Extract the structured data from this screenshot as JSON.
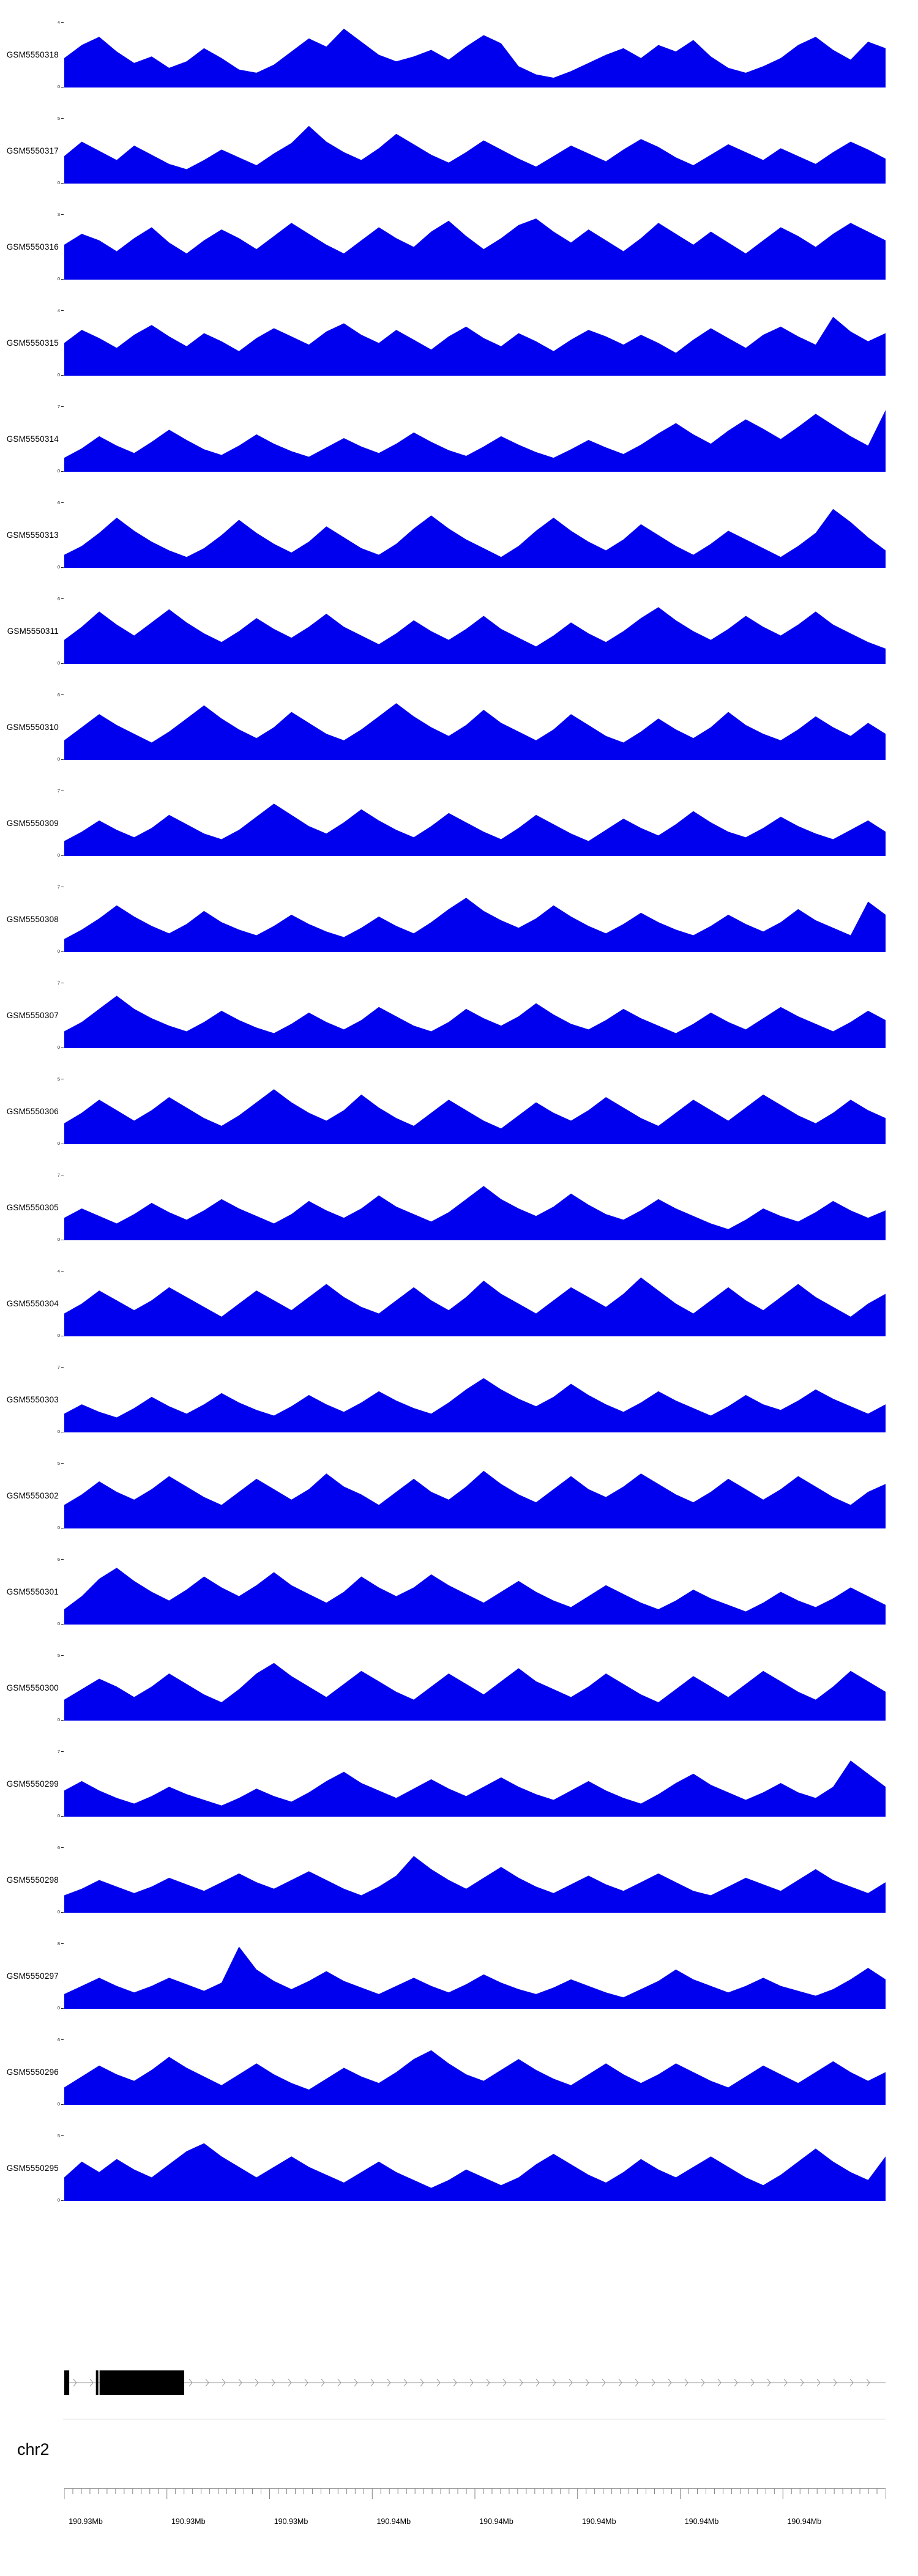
{
  "chart_data": {
    "type": "area",
    "title": "",
    "description": "Genome browser coverage tracks (read-depth signal) for 23 GEO samples over a region of chromosome 2",
    "chromosome_label": "chr2",
    "y_min_label": "0",
    "fill_color": "#0000EE",
    "x_tick_labels": [
      "190.93Mb",
      "190.93Mb",
      "190.93Mb",
      "190.94Mb",
      "190.94Mb",
      "190.94Mb",
      "190.94Mb",
      "190.94Mb"
    ],
    "tracks": [
      {
        "label": "GSM5550318",
        "ymax": 4,
        "values": [
          1.8,
          2.6,
          3.1,
          2.2,
          1.5,
          1.9,
          1.2,
          1.6,
          2.4,
          1.8,
          1.1,
          0.9,
          1.4,
          2.2,
          3.0,
          2.5,
          3.6,
          2.8,
          2.0,
          1.6,
          1.9,
          2.3,
          1.7,
          2.5,
          3.2,
          2.7,
          1.3,
          0.8,
          0.6,
          1.0,
          1.5,
          2.0,
          2.4,
          1.8,
          2.6,
          2.2,
          2.9,
          1.9,
          1.2,
          0.9,
          1.3,
          1.8,
          2.6,
          3.1,
          2.3,
          1.7,
          2.8,
          2.4
        ]
      },
      {
        "label": "GSM5550317",
        "ymax": 5,
        "values": [
          2.1,
          3.2,
          2.5,
          1.8,
          2.9,
          2.2,
          1.5,
          1.1,
          1.8,
          2.6,
          2.0,
          1.4,
          2.3,
          3.1,
          4.4,
          3.2,
          2.4,
          1.8,
          2.7,
          3.8,
          3.0,
          2.2,
          1.6,
          2.4,
          3.3,
          2.6,
          1.9,
          1.3,
          2.1,
          2.9,
          2.3,
          1.7,
          2.6,
          3.4,
          2.8,
          2.0,
          1.4,
          2.2,
          3.0,
          2.4,
          1.8,
          2.7,
          2.1,
          1.5,
          2.4,
          3.2,
          2.6,
          1.9
        ]
      },
      {
        "label": "GSM5550316",
        "ymax": 3,
        "values": [
          1.6,
          2.1,
          1.8,
          1.3,
          1.9,
          2.4,
          1.7,
          1.2,
          1.8,
          2.3,
          1.9,
          1.4,
          2.0,
          2.6,
          2.1,
          1.6,
          1.2,
          1.8,
          2.4,
          1.9,
          1.5,
          2.2,
          2.7,
          2.0,
          1.4,
          1.9,
          2.5,
          2.8,
          2.2,
          1.7,
          2.3,
          1.8,
          1.3,
          1.9,
          2.6,
          2.1,
          1.6,
          2.2,
          1.7,
          1.2,
          1.8,
          2.4,
          2.0,
          1.5,
          2.1,
          2.6,
          2.2,
          1.8
        ]
      },
      {
        "label": "GSM5550315",
        "ymax": 4,
        "values": [
          2.0,
          2.8,
          2.3,
          1.7,
          2.5,
          3.1,
          2.4,
          1.8,
          2.6,
          2.1,
          1.5,
          2.3,
          2.9,
          2.4,
          1.9,
          2.7,
          3.2,
          2.5,
          2.0,
          2.8,
          2.2,
          1.6,
          2.4,
          3.0,
          2.3,
          1.8,
          2.6,
          2.1,
          1.5,
          2.2,
          2.8,
          2.4,
          1.9,
          2.5,
          2.0,
          1.4,
          2.2,
          2.9,
          2.3,
          1.7,
          2.5,
          3.0,
          2.4,
          1.9,
          3.6,
          2.7,
          2.1,
          2.6
        ]
      },
      {
        "label": "GSM5550314",
        "ymax": 7,
        "values": [
          1.5,
          2.5,
          3.8,
          2.8,
          2.0,
          3.2,
          4.5,
          3.4,
          2.4,
          1.8,
          2.8,
          4.0,
          3.0,
          2.2,
          1.6,
          2.6,
          3.6,
          2.7,
          2.0,
          3.0,
          4.2,
          3.2,
          2.3,
          1.7,
          2.7,
          3.8,
          2.9,
          2.1,
          1.5,
          2.4,
          3.4,
          2.6,
          1.9,
          2.9,
          4.1,
          5.2,
          4.0,
          3.0,
          4.4,
          5.6,
          4.6,
          3.5,
          4.8,
          6.2,
          5.0,
          3.8,
          2.8,
          6.6
        ]
      },
      {
        "label": "GSM5550313",
        "ymax": 6,
        "values": [
          1.2,
          2.0,
          3.2,
          4.6,
          3.4,
          2.4,
          1.6,
          1.0,
          1.8,
          3.0,
          4.4,
          3.2,
          2.2,
          1.4,
          2.4,
          3.8,
          2.8,
          1.8,
          1.2,
          2.2,
          3.6,
          4.8,
          3.6,
          2.6,
          1.8,
          1.0,
          2.0,
          3.4,
          4.6,
          3.4,
          2.4,
          1.6,
          2.6,
          4.0,
          3.0,
          2.0,
          1.2,
          2.2,
          3.4,
          2.6,
          1.8,
          1.0,
          2.0,
          3.2,
          5.4,
          4.2,
          2.8,
          1.6
        ]
      },
      {
        "label": "GSM5550311",
        "ymax": 6,
        "values": [
          2.2,
          3.4,
          4.8,
          3.6,
          2.6,
          3.8,
          5.0,
          3.8,
          2.8,
          2.0,
          3.0,
          4.2,
          3.2,
          2.4,
          3.4,
          4.6,
          3.4,
          2.6,
          1.8,
          2.8,
          4.0,
          3.0,
          2.2,
          3.2,
          4.4,
          3.2,
          2.4,
          1.6,
          2.6,
          3.8,
          2.8,
          2.0,
          3.0,
          4.2,
          5.2,
          4.0,
          3.0,
          2.2,
          3.2,
          4.4,
          3.4,
          2.6,
          3.6,
          4.8,
          3.6,
          2.8,
          2.0,
          1.4
        ]
      },
      {
        "label": "GSM5550310",
        "ymax": 6,
        "values": [
          1.8,
          3.0,
          4.2,
          3.2,
          2.4,
          1.6,
          2.6,
          3.8,
          5.0,
          3.8,
          2.8,
          2.0,
          3.0,
          4.4,
          3.4,
          2.4,
          1.8,
          2.8,
          4.0,
          5.2,
          4.0,
          3.0,
          2.2,
          3.2,
          4.6,
          3.4,
          2.6,
          1.8,
          2.8,
          4.2,
          3.2,
          2.2,
          1.6,
          2.6,
          3.8,
          2.8,
          2.0,
          3.0,
          4.4,
          3.2,
          2.4,
          1.8,
          2.8,
          4.0,
          3.0,
          2.2,
          3.4,
          2.4
        ]
      },
      {
        "label": "GSM5550309",
        "ymax": 7,
        "values": [
          1.6,
          2.6,
          3.8,
          2.8,
          2.0,
          3.0,
          4.4,
          3.4,
          2.4,
          1.8,
          2.8,
          4.2,
          5.6,
          4.4,
          3.2,
          2.4,
          3.6,
          5.0,
          3.8,
          2.8,
          2.0,
          3.2,
          4.6,
          3.6,
          2.6,
          1.8,
          3.0,
          4.4,
          3.4,
          2.4,
          1.6,
          2.8,
          4.0,
          3.0,
          2.2,
          3.4,
          4.8,
          3.6,
          2.6,
          2.0,
          3.0,
          4.2,
          3.2,
          2.4,
          1.8,
          2.8,
          3.8,
          2.6
        ]
      },
      {
        "label": "GSM5550308",
        "ymax": 7,
        "values": [
          1.4,
          2.4,
          3.6,
          5.0,
          3.8,
          2.8,
          2.0,
          3.0,
          4.4,
          3.2,
          2.4,
          1.8,
          2.8,
          4.0,
          3.0,
          2.2,
          1.6,
          2.6,
          3.8,
          2.8,
          2.0,
          3.2,
          4.6,
          5.8,
          4.4,
          3.4,
          2.6,
          3.6,
          5.0,
          3.8,
          2.8,
          2.0,
          3.0,
          4.2,
          3.2,
          2.4,
          1.8,
          2.8,
          4.0,
          3.0,
          2.2,
          3.2,
          4.6,
          3.4,
          2.6,
          1.8,
          5.4,
          4.0
        ]
      },
      {
        "label": "GSM5550307",
        "ymax": 7,
        "values": [
          1.8,
          2.8,
          4.2,
          5.6,
          4.2,
          3.2,
          2.4,
          1.8,
          2.8,
          4.0,
          3.0,
          2.2,
          1.6,
          2.6,
          3.8,
          2.8,
          2.0,
          3.0,
          4.4,
          3.4,
          2.4,
          1.8,
          2.8,
          4.2,
          3.2,
          2.4,
          3.4,
          4.8,
          3.6,
          2.6,
          2.0,
          3.0,
          4.2,
          3.2,
          2.4,
          1.6,
          2.6,
          3.8,
          2.8,
          2.0,
          3.2,
          4.4,
          3.4,
          2.6,
          1.8,
          2.8,
          4.0,
          3.0
        ]
      },
      {
        "label": "GSM5550306",
        "ymax": 5,
        "values": [
          1.6,
          2.4,
          3.4,
          2.6,
          1.8,
          2.6,
          3.6,
          2.8,
          2.0,
          1.4,
          2.2,
          3.2,
          4.2,
          3.2,
          2.4,
          1.8,
          2.6,
          3.8,
          2.8,
          2.0,
          1.4,
          2.4,
          3.4,
          2.6,
          1.8,
          1.2,
          2.2,
          3.2,
          2.4,
          1.8,
          2.6,
          3.6,
          2.8,
          2.0,
          1.4,
          2.4,
          3.4,
          2.6,
          1.8,
          2.8,
          3.8,
          3.0,
          2.2,
          1.6,
          2.4,
          3.4,
          2.6,
          2.0
        ]
      },
      {
        "label": "GSM5550305",
        "ymax": 7,
        "values": [
          2.4,
          3.4,
          2.6,
          1.8,
          2.8,
          4.0,
          3.0,
          2.2,
          3.2,
          4.4,
          3.4,
          2.6,
          1.8,
          2.8,
          4.2,
          3.2,
          2.4,
          3.4,
          4.8,
          3.6,
          2.8,
          2.0,
          3.0,
          4.4,
          5.8,
          4.4,
          3.4,
          2.6,
          3.6,
          5.0,
          3.8,
          2.8,
          2.2,
          3.2,
          4.4,
          3.4,
          2.6,
          1.8,
          1.2,
          2.2,
          3.4,
          2.6,
          2.0,
          3.0,
          4.2,
          3.2,
          2.4,
          3.2
        ]
      },
      {
        "label": "GSM5550304",
        "ymax": 4,
        "values": [
          1.4,
          2.0,
          2.8,
          2.2,
          1.6,
          2.2,
          3.0,
          2.4,
          1.8,
          1.2,
          2.0,
          2.8,
          2.2,
          1.6,
          2.4,
          3.2,
          2.4,
          1.8,
          1.4,
          2.2,
          3.0,
          2.2,
          1.6,
          2.4,
          3.4,
          2.6,
          2.0,
          1.4,
          2.2,
          3.0,
          2.4,
          1.8,
          2.6,
          3.6,
          2.8,
          2.0,
          1.4,
          2.2,
          3.0,
          2.2,
          1.6,
          2.4,
          3.2,
          2.4,
          1.8,
          1.2,
          2.0,
          2.6
        ]
      },
      {
        "label": "GSM5550303",
        "ymax": 7,
        "values": [
          2.0,
          3.0,
          2.2,
          1.6,
          2.6,
          3.8,
          2.8,
          2.0,
          3.0,
          4.2,
          3.2,
          2.4,
          1.8,
          2.8,
          4.0,
          3.0,
          2.2,
          3.2,
          4.4,
          3.4,
          2.6,
          2.0,
          3.2,
          4.6,
          5.8,
          4.6,
          3.6,
          2.8,
          3.8,
          5.2,
          4.0,
          3.0,
          2.2,
          3.2,
          4.4,
          3.4,
          2.6,
          1.8,
          2.8,
          4.0,
          3.0,
          2.4,
          3.4,
          4.6,
          3.6,
          2.8,
          2.0,
          3.0
        ]
      },
      {
        "label": "GSM5550302",
        "ymax": 5,
        "values": [
          1.8,
          2.6,
          3.6,
          2.8,
          2.2,
          3.0,
          4.0,
          3.2,
          2.4,
          1.8,
          2.8,
          3.8,
          3.0,
          2.2,
          3.0,
          4.2,
          3.2,
          2.6,
          1.8,
          2.8,
          3.8,
          2.8,
          2.2,
          3.2,
          4.4,
          3.4,
          2.6,
          2.0,
          3.0,
          4.0,
          3.0,
          2.4,
          3.2,
          4.2,
          3.4,
          2.6,
          2.0,
          2.8,
          3.8,
          3.0,
          2.2,
          3.0,
          4.0,
          3.2,
          2.4,
          1.8,
          2.8,
          3.4
        ]
      },
      {
        "label": "GSM5550301",
        "ymax": 6,
        "values": [
          1.4,
          2.6,
          4.2,
          5.2,
          4.0,
          3.0,
          2.2,
          3.2,
          4.4,
          3.4,
          2.6,
          3.6,
          4.8,
          3.6,
          2.8,
          2.0,
          3.0,
          4.4,
          3.4,
          2.6,
          3.4,
          4.6,
          3.6,
          2.8,
          2.0,
          3.0,
          4.0,
          3.0,
          2.2,
          1.6,
          2.6,
          3.6,
          2.8,
          2.0,
          1.4,
          2.2,
          3.2,
          2.4,
          1.8,
          1.2,
          2.0,
          3.0,
          2.2,
          1.6,
          2.4,
          3.4,
          2.6,
          1.8
        ]
      },
      {
        "label": "GSM5550300",
        "ymax": 5,
        "values": [
          1.6,
          2.4,
          3.2,
          2.6,
          1.8,
          2.6,
          3.6,
          2.8,
          2.0,
          1.4,
          2.4,
          3.6,
          4.4,
          3.4,
          2.6,
          1.8,
          2.8,
          3.8,
          3.0,
          2.2,
          1.6,
          2.6,
          3.6,
          2.8,
          2.0,
          3.0,
          4.0,
          3.0,
          2.4,
          1.8,
          2.6,
          3.6,
          2.8,
          2.0,
          1.4,
          2.4,
          3.4,
          2.6,
          1.8,
          2.8,
          3.8,
          3.0,
          2.2,
          1.6,
          2.6,
          3.8,
          3.0,
          2.2
        ]
      },
      {
        "label": "GSM5550299",
        "ymax": 7,
        "values": [
          2.8,
          3.8,
          2.8,
          2.0,
          1.4,
          2.2,
          3.2,
          2.4,
          1.8,
          1.2,
          2.0,
          3.0,
          2.2,
          1.6,
          2.6,
          3.8,
          4.8,
          3.6,
          2.8,
          2.0,
          3.0,
          4.0,
          3.0,
          2.2,
          3.2,
          4.2,
          3.2,
          2.4,
          1.8,
          2.8,
          3.8,
          2.8,
          2.0,
          1.4,
          2.4,
          3.6,
          4.6,
          3.4,
          2.6,
          1.8,
          2.6,
          3.6,
          2.6,
          2.0,
          3.2,
          6.0,
          4.6,
          3.2
        ]
      },
      {
        "label": "GSM5550298",
        "ymax": 6,
        "values": [
          1.6,
          2.2,
          3.0,
          2.4,
          1.8,
          2.4,
          3.2,
          2.6,
          2.0,
          2.8,
          3.6,
          2.8,
          2.2,
          3.0,
          3.8,
          3.0,
          2.2,
          1.6,
          2.4,
          3.4,
          5.2,
          4.0,
          3.0,
          2.2,
          3.2,
          4.2,
          3.2,
          2.4,
          1.8,
          2.6,
          3.4,
          2.6,
          2.0,
          2.8,
          3.6,
          2.8,
          2.0,
          1.6,
          2.4,
          3.2,
          2.6,
          2.0,
          3.0,
          4.0,
          3.0,
          2.4,
          1.8,
          2.8
        ]
      },
      {
        "label": "GSM5550297",
        "ymax": 8,
        "values": [
          1.8,
          2.8,
          3.8,
          2.8,
          2.0,
          2.8,
          3.8,
          3.0,
          2.2,
          3.2,
          7.6,
          4.8,
          3.4,
          2.4,
          3.4,
          4.6,
          3.4,
          2.6,
          1.8,
          2.8,
          3.8,
          2.8,
          2.0,
          3.0,
          4.2,
          3.2,
          2.4,
          1.8,
          2.6,
          3.6,
          2.8,
          2.0,
          1.4,
          2.4,
          3.4,
          4.8,
          3.6,
          2.8,
          2.0,
          2.8,
          3.8,
          2.8,
          2.2,
          1.6,
          2.4,
          3.6,
          5.0,
          3.6
        ]
      },
      {
        "label": "GSM5550296",
        "ymax": 6,
        "values": [
          1.6,
          2.6,
          3.6,
          2.8,
          2.2,
          3.2,
          4.4,
          3.4,
          2.6,
          1.8,
          2.8,
          3.8,
          2.8,
          2.0,
          1.4,
          2.4,
          3.4,
          2.6,
          2.0,
          3.0,
          4.2,
          5.0,
          3.8,
          2.8,
          2.2,
          3.2,
          4.2,
          3.2,
          2.4,
          1.8,
          2.8,
          3.8,
          2.8,
          2.0,
          2.8,
          3.8,
          3.0,
          2.2,
          1.6,
          2.6,
          3.6,
          2.8,
          2.0,
          3.0,
          4.0,
          3.0,
          2.2,
          3.0
        ]
      },
      {
        "label": "GSM5550295",
        "ymax": 5,
        "values": [
          1.8,
          3.0,
          2.2,
          3.2,
          2.4,
          1.8,
          2.8,
          3.8,
          4.4,
          3.4,
          2.6,
          1.8,
          2.6,
          3.4,
          2.6,
          2.0,
          1.4,
          2.2,
          3.0,
          2.2,
          1.6,
          1.0,
          1.6,
          2.4,
          1.8,
          1.2,
          1.8,
          2.8,
          3.6,
          2.8,
          2.0,
          1.4,
          2.2,
          3.2,
          2.4,
          1.8,
          2.6,
          3.4,
          2.6,
          1.8,
          1.2,
          2.0,
          3.0,
          4.0,
          3.0,
          2.2,
          1.6,
          3.4
        ]
      }
    ]
  },
  "gene_model": {
    "strand": "+",
    "color": "#000000",
    "line_color": "#999999",
    "exons": [
      {
        "start": 0.0,
        "end": 0.006
      },
      {
        "start": 0.0385,
        "end": 0.0415
      },
      {
        "start": 0.043,
        "end": 0.146
      }
    ]
  }
}
